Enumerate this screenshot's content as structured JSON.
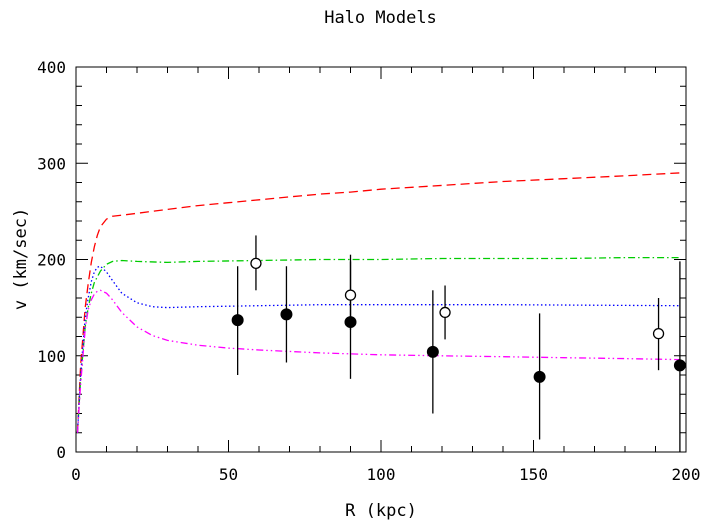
{
  "chart_data": {
    "type": "scatter",
    "title": "Halo Models",
    "xlabel": "R (kpc)",
    "ylabel": "v (km/sec)",
    "xlim": [
      0,
      200
    ],
    "ylim": [
      0,
      400
    ],
    "xticks": [
      0,
      50,
      100,
      150,
      200
    ],
    "yticks": [
      0,
      100,
      200,
      300,
      400
    ],
    "grid": false,
    "curves": [
      {
        "color": "#ff0000",
        "dash": "dashed",
        "x": [
          0.5,
          1.5,
          3,
          4,
          5,
          6,
          7,
          8,
          10,
          12,
          15,
          20,
          30,
          40,
          50,
          60,
          70,
          80,
          90,
          100,
          120,
          140,
          160,
          180,
          198
        ],
        "y": [
          20,
          90,
          150,
          175,
          197,
          213,
          225,
          234,
          242,
          245,
          246,
          248,
          252,
          256,
          259,
          262,
          265,
          268,
          270,
          273,
          277,
          281,
          284,
          287,
          290
        ]
      },
      {
        "color": "#00cc00",
        "dash": "dashdot",
        "x": [
          0.5,
          1.5,
          3,
          4,
          5,
          6,
          8,
          10,
          12,
          15,
          20,
          30,
          40,
          60,
          80,
          100,
          120,
          140,
          160,
          180,
          198
        ],
        "y": [
          20,
          75,
          130,
          150,
          165,
          176,
          188,
          195,
          198,
          199,
          198,
          197,
          198,
          199,
          200,
          200,
          201,
          201,
          201,
          202,
          202
        ]
      },
      {
        "color": "#0000ff",
        "dash": "dotted",
        "x": [
          0.5,
          1.5,
          3,
          4,
          5,
          6,
          7,
          8,
          10,
          12,
          15,
          20,
          25,
          30,
          40,
          60,
          80,
          100,
          140,
          198
        ],
        "y": [
          20,
          80,
          140,
          160,
          177,
          187,
          192,
          193,
          187,
          178,
          165,
          155,
          151,
          150,
          151,
          152,
          153,
          153,
          153,
          152
        ]
      },
      {
        "color": "#ff00ff",
        "dash": "dashdotdot",
        "x": [
          0.5,
          1.5,
          3,
          4,
          5,
          6,
          7,
          8,
          10,
          12,
          15,
          20,
          25,
          30,
          40,
          50,
          60,
          80,
          100,
          120,
          140,
          160,
          180,
          198
        ],
        "y": [
          20,
          70,
          128,
          148,
          158,
          164,
          167,
          168,
          165,
          158,
          145,
          130,
          121,
          116,
          111,
          108,
          106,
          103,
          101,
          100,
          99,
          98,
          97,
          96
        ]
      }
    ],
    "points_filled": [
      {
        "x": 53,
        "y": 137,
        "ylo": 80,
        "yhi": 193
      },
      {
        "x": 69,
        "y": 143,
        "ylo": 93,
        "yhi": 193
      },
      {
        "x": 90,
        "y": 135,
        "ylo": 76,
        "yhi": 198
      },
      {
        "x": 117,
        "y": 104,
        "ylo": 40,
        "yhi": 168
      },
      {
        "x": 152,
        "y": 78,
        "ylo": 13,
        "yhi": 144
      },
      {
        "x": 198,
        "y": 90,
        "ylo": 0,
        "yhi": 198
      }
    ],
    "points_open": [
      {
        "x": 59,
        "y": 196,
        "ylo": 168,
        "yhi": 225
      },
      {
        "x": 90,
        "y": 163,
        "ylo": 127,
        "yhi": 205
      },
      {
        "x": 121,
        "y": 145,
        "ylo": 117,
        "yhi": 173
      },
      {
        "x": 191,
        "y": 123,
        "ylo": 85,
        "yhi": 160
      }
    ]
  }
}
